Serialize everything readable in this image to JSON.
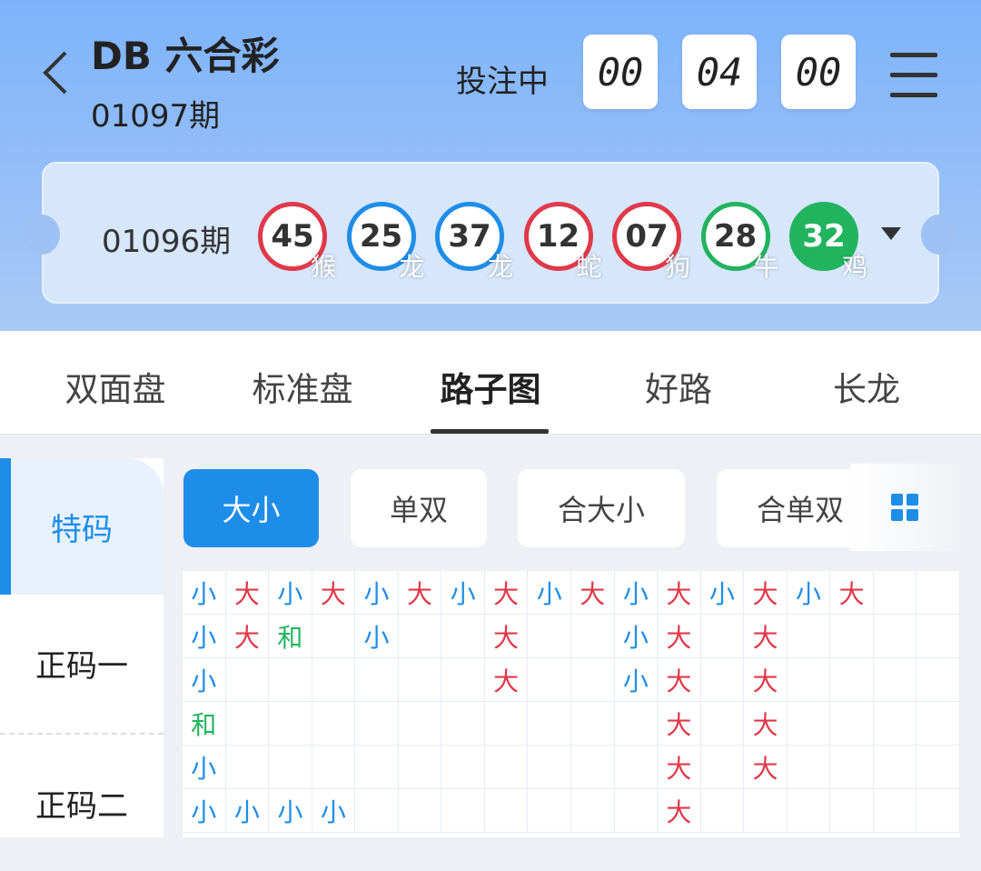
{
  "header": {
    "title": "DB 六合彩",
    "period": "01097期",
    "status": "投注中",
    "countdown": [
      "00",
      "04",
      "00"
    ]
  },
  "last_draw": {
    "period": "01096期",
    "balls": [
      {
        "num": "45",
        "zodiac": "猴",
        "color": "#e0394a",
        "filled": false
      },
      {
        "num": "25",
        "zodiac": "龙",
        "color": "#1e8de8",
        "filled": false
      },
      {
        "num": "37",
        "zodiac": "龙",
        "color": "#1e8de8",
        "filled": false
      },
      {
        "num": "12",
        "zodiac": "蛇",
        "color": "#e0394a",
        "filled": false
      },
      {
        "num": "07",
        "zodiac": "狗",
        "color": "#e0394a",
        "filled": false
      },
      {
        "num": "28",
        "zodiac": "牛",
        "color": "#22b35e",
        "filled": false
      },
      {
        "num": "32",
        "zodiac": "鸡",
        "color": "#22b35e",
        "filled": true
      }
    ]
  },
  "tabs": [
    {
      "label": "双面盘"
    },
    {
      "label": "标准盘"
    },
    {
      "label": "路子图",
      "active": true
    },
    {
      "label": "好路"
    },
    {
      "label": "长龙"
    }
  ],
  "sidebar": [
    {
      "label": "特码",
      "active": true
    },
    {
      "label": "正码一"
    },
    {
      "label": "正码二"
    }
  ],
  "chips": [
    {
      "label": "大小",
      "active": true
    },
    {
      "label": "单双"
    },
    {
      "label": "合大小"
    },
    {
      "label": "合单双"
    }
  ],
  "colors": {
    "大": "#e0394a",
    "小": "#1e8de8",
    "和": "#22b35e"
  },
  "road_columns": [
    [
      "小",
      "小",
      "小",
      "和",
      "小",
      "小"
    ],
    [
      "大",
      "大",
      "",
      "",
      "",
      "小"
    ],
    [
      "小",
      "和",
      "",
      "",
      "",
      "小"
    ],
    [
      "大",
      "",
      "",
      "",
      "",
      "小"
    ],
    [
      "小",
      "小",
      "",
      "",
      "",
      ""
    ],
    [
      "大",
      "",
      "",
      "",
      "",
      ""
    ],
    [
      "小",
      "",
      "",
      "",
      "",
      ""
    ],
    [
      "大",
      "大",
      "大",
      "",
      "",
      ""
    ],
    [
      "小",
      "",
      "",
      "",
      "",
      ""
    ],
    [
      "大",
      "",
      "",
      "",
      "",
      ""
    ],
    [
      "小",
      "小",
      "小",
      "",
      "",
      ""
    ],
    [
      "大",
      "大",
      "大",
      "大",
      "大",
      "大"
    ],
    [
      "小",
      "",
      "",
      "",
      "",
      ""
    ],
    [
      "大",
      "大",
      "大",
      "大",
      "大",
      ""
    ],
    [
      "小",
      "",
      "",
      "",
      "",
      ""
    ],
    [
      "大",
      "",
      "",
      "",
      "",
      ""
    ],
    [
      "",
      "",
      "",
      "",
      "",
      ""
    ],
    [
      "",
      "",
      "",
      "",
      "",
      ""
    ]
  ]
}
